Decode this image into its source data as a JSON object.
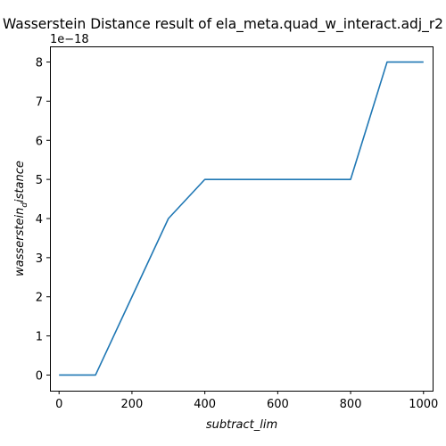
{
  "chart_data": {
    "type": "line",
    "title": "Wasserstein Distance result of ela_meta.quad_w_interact.adj_r2",
    "xlabel": "subtract_lim",
    "ylabel_main": "wasserstein",
    "ylabel_sub": "d",
    "ylabel_tail": "istance",
    "y_offset_text": "1e−18",
    "xlim": [
      -25,
      1025
    ],
    "ylim": [
      -0.4,
      8.4
    ],
    "x_ticks": [
      0,
      200,
      400,
      600,
      800,
      1000
    ],
    "x_tick_labels": [
      "0",
      "200",
      "400",
      "600",
      "800",
      "1000"
    ],
    "y_ticks": [
      0,
      1,
      2,
      3,
      4,
      5,
      6,
      7,
      8
    ],
    "y_tick_labels": [
      "0",
      "1",
      "2",
      "3",
      "4",
      "5",
      "6",
      "7",
      "8"
    ],
    "grid": false,
    "series": [
      {
        "color": "#1f77b4",
        "x": [
          0,
          100,
          200,
          300,
          400,
          500,
          600,
          700,
          800,
          900,
          1000
        ],
        "y": [
          0,
          0,
          2,
          4,
          5,
          5,
          5,
          5,
          5,
          8,
          8
        ]
      }
    ]
  }
}
